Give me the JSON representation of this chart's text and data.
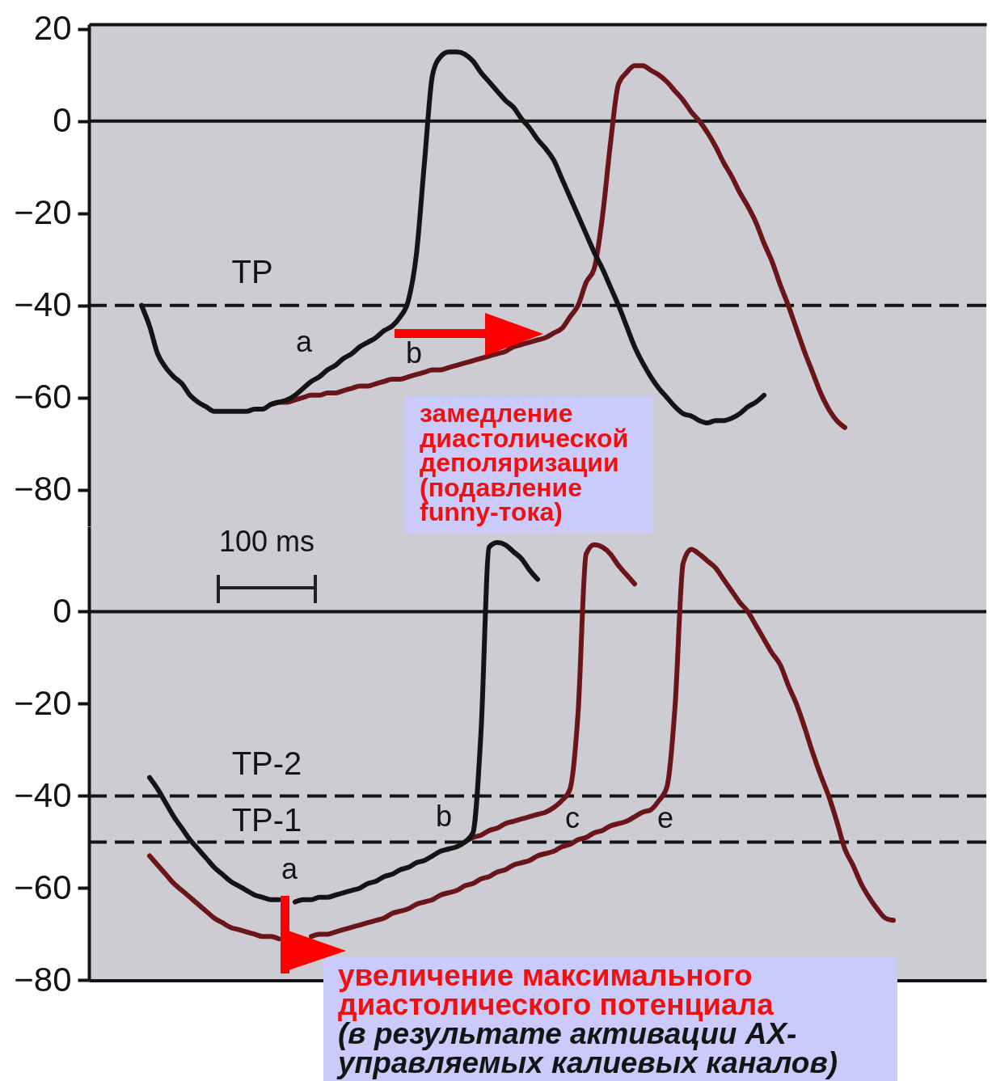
{
  "chart_data": [
    {
      "type": "line",
      "categories": [
        null,
        null,
        null,
        null,
        null,
        null,
        null,
        null,
        null,
        null,
        null,
        null,
        null,
        null,
        null,
        null,
        null,
        null,
        null,
        null,
        null,
        null,
        null,
        null,
        null,
        null,
        null,
        null,
        null,
        null,
        null,
        null,
        null,
        null,
        null,
        null,
        null,
        null,
        null,
        null,
        null,
        null,
        null,
        null,
        null,
        null,
        null,
        null,
        null,
        null,
        null,
        null,
        null,
        null,
        null,
        null,
        null,
        null,
        null,
        null,
        null,
        null,
        null,
        null,
        null,
        null,
        null,
        null,
        null,
        null,
        null,
        null,
        null,
        null,
        null,
        null,
        null,
        null,
        null,
        null,
        null,
        null,
        null,
        null,
        null,
        null,
        null,
        null,
        null,
        null,
        null,
        null,
        null,
        null,
        null,
        null,
        null,
        null,
        null,
        null,
        null,
        null,
        null,
        null,
        null,
        null,
        null,
        null,
        null,
        null,
        null
      ],
      "series": [
        {
          "color": "#6a151a",
          "values": [
            null,
            null,
            null,
            null,
            null,
            null,
            null,
            null,
            null,
            null,
            null,
            null,
            null,
            null,
            null,
            null,
            null,
            null,
            null,
            null,
            null,
            null,
            -61.5,
            -61,
            -61,
            -60.5,
            -60,
            -59.5,
            -59.5,
            -59,
            -59,
            -58.5,
            -58,
            -57.5,
            -57.5,
            -57,
            -56.5,
            -56,
            -56,
            -55.5,
            -55,
            -54.5,
            -54,
            -54,
            -53.5,
            -53,
            -52.5,
            -52,
            -51.5,
            -51,
            -50.5,
            -50,
            -49,
            -48.5,
            -48,
            -47.5,
            -47,
            -46,
            -45,
            -42.5,
            -40,
            -35,
            -32,
            -21,
            -5,
            8,
            10.5,
            12,
            12,
            11,
            10,
            8.5,
            6.5,
            4.5,
            2,
            0,
            -2.5,
            -5.5,
            -9,
            -12,
            -15.5,
            -18.5,
            -22,
            -26.5,
            -30.5,
            -35.5,
            -40,
            -45,
            -50,
            -54.5,
            -59,
            -62.5,
            -65,
            -66.5,
            null,
            null,
            null,
            null,
            null,
            null,
            null,
            null,
            null,
            null,
            null,
            null,
            null,
            null,
            null,
            null,
            null
          ]
        },
        {
          "color": "#141414",
          "values": [
            null,
            null,
            null,
            null,
            null,
            null,
            -40,
            -44.5,
            -50.5,
            -53.5,
            -55.5,
            -57,
            -59.5,
            -61,
            -62,
            -63,
            -63,
            -63,
            -63,
            -63,
            -62.5,
            -62.5,
            -61.5,
            -61,
            -60.5,
            -59.5,
            -58,
            -56.5,
            -55.5,
            -54,
            -53,
            -51.5,
            -50.5,
            -49,
            -48,
            -47,
            -45.5,
            -44.5,
            -42.5,
            -39,
            -29,
            -9,
            10,
            14,
            15,
            15,
            14.5,
            13,
            10.5,
            8.5,
            6.5,
            4.5,
            3,
            0.5,
            -1.5,
            -4,
            -6,
            -8.5,
            -12.5,
            -16.5,
            -20.5,
            -24.5,
            -28.5,
            -32,
            -36,
            -40,
            -44.5,
            -49,
            -52.5,
            -55.5,
            -58,
            -60,
            -62,
            -63.5,
            -64,
            -65,
            -65.5,
            -65,
            -65,
            -64.5,
            -63.5,
            -62,
            -61,
            -59.5,
            null,
            null,
            null,
            null,
            null,
            null,
            null,
            null,
            null,
            null,
            null,
            null,
            null,
            null,
            null,
            null,
            null,
            null,
            null,
            null,
            null,
            null,
            null,
            null,
            null,
            null,
            null
          ]
        }
      ],
      "ylim": [
        -88,
        21
      ],
      "yticks": [
        20,
        0,
        -20,
        -40,
        -60,
        -80
      ],
      "tick_labels": "y",
      "ref_lines": [
        {
          "axis": "y",
          "value": 0,
          "line_style": "solid",
          "color": "#141414"
        },
        {
          "axis": "y",
          "value": -40,
          "label": "TP",
          "line_style": "dashed",
          "color": "#141414"
        }
      ],
      "annotations": [
        "a",
        "b",
        "замедление диастолической деполяризации (подавление funny-тока)"
      ]
    },
    {
      "type": "line",
      "categories": [
        null,
        null,
        null,
        null,
        null,
        null,
        null,
        null,
        null,
        null,
        null,
        null,
        null,
        null,
        null,
        null,
        null,
        null,
        null,
        null,
        null,
        null,
        null,
        null,
        null,
        null,
        null,
        null,
        null,
        null,
        null,
        null,
        null,
        null,
        null,
        null,
        null,
        null,
        null,
        null,
        null,
        null,
        null,
        null,
        null,
        null,
        null,
        null,
        null,
        null,
        null,
        null,
        null,
        null,
        null,
        null,
        null,
        null,
        null,
        null,
        null,
        null,
        null,
        null,
        null,
        null,
        null,
        null,
        null,
        null,
        null,
        null,
        null,
        null,
        null,
        null,
        null,
        null,
        null,
        null,
        null,
        null,
        null,
        null,
        null,
        null,
        null,
        null,
        null,
        null,
        null,
        null,
        null,
        null,
        null,
        null,
        null,
        null,
        null,
        null,
        null,
        null,
        null,
        null,
        null,
        null,
        null,
        null,
        null,
        null,
        null
      ],
      "series": [
        {
          "color": "#6a151a",
          "values": [
            null,
            null,
            null,
            null,
            null,
            null,
            null,
            null,
            null,
            null,
            null,
            null,
            null,
            null,
            null,
            null,
            null,
            null,
            null,
            null,
            null,
            null,
            null,
            null,
            null,
            null,
            null,
            null,
            null,
            null,
            null,
            null,
            null,
            null,
            null,
            null,
            null,
            null,
            null,
            null,
            null,
            null,
            null,
            null,
            null,
            null,
            -50,
            -49,
            -48.5,
            -47.5,
            -47,
            -46,
            -45.5,
            -45,
            -44.5,
            -44,
            -43.5,
            -42.5,
            -41,
            -38.5,
            -22,
            12.5,
            14.5,
            14,
            12.5,
            10,
            8,
            6,
            null,
            null,
            null,
            null,
            null,
            null,
            null,
            null,
            null,
            null,
            null,
            null,
            null,
            null,
            null,
            null,
            null,
            null,
            null,
            null,
            null,
            null,
            null,
            null,
            null,
            null,
            null,
            null,
            null,
            null,
            null,
            null,
            null,
            null,
            null,
            null,
            null,
            null,
            null,
            null,
            null,
            null,
            null
          ]
        },
        {
          "color": "#6a151a",
          "values": [
            null,
            null,
            null,
            null,
            null,
            null,
            null,
            -53,
            -55,
            -57,
            -59,
            -60.5,
            -62,
            -63.5,
            -65,
            -66.5,
            -67.5,
            -68.5,
            -69,
            -69.5,
            -70,
            -70.5,
            -70.5,
            -71,
            null,
            null,
            null,
            -70.5,
            -70,
            -70,
            -69.5,
            -69,
            -68.5,
            -68,
            -67.5,
            -67,
            -66.5,
            -65.5,
            -65,
            -64.5,
            -63.5,
            -63,
            -62.5,
            -61.5,
            -61,
            -60.5,
            -59.5,
            -59,
            -58,
            -57.5,
            -56.5,
            -56,
            -55,
            -54.5,
            -54,
            -53,
            -52.5,
            -52,
            -51,
            -50.5,
            -49.5,
            -49,
            -48,
            -47.5,
            -46.5,
            -46,
            -45.5,
            -44.5,
            -43.5,
            -43,
            -41,
            -38,
            -20.5,
            10.5,
            13.5,
            12.5,
            11,
            9.5,
            7,
            4.5,
            2,
            0,
            -3,
            -6,
            -9,
            -11.5,
            -16,
            -20,
            -25,
            -30.5,
            -35.5,
            -40,
            -45.5,
            -51.5,
            -55,
            -59,
            -62,
            -64.5,
            -66.5,
            -67,
            null,
            null,
            null,
            null,
            null,
            null,
            null,
            null,
            null,
            null,
            null
          ]
        },
        {
          "color": "#141414",
          "values": [
            null,
            null,
            null,
            null,
            null,
            null,
            null,
            -36,
            -38.5,
            -41.5,
            -44.5,
            -47,
            -49.5,
            -51.5,
            -53.5,
            -55.5,
            -57,
            -58.5,
            -59.5,
            -60.5,
            -61.5,
            -62,
            -62.5,
            -62.5,
            null,
            -63,
            -62.5,
            -62.5,
            -62,
            -62,
            -61.5,
            -61,
            -60.5,
            -60,
            -59,
            -58.5,
            -57.5,
            -57,
            -56,
            -55.5,
            -54.5,
            -54,
            -53,
            -52,
            -51.5,
            -51,
            -50,
            -48,
            -26,
            14,
            15,
            14.5,
            13,
            11.5,
            9,
            7,
            null,
            null,
            null,
            null,
            null,
            null,
            null,
            null,
            null,
            null,
            null,
            null,
            null,
            null,
            null,
            null,
            null,
            null,
            null,
            null,
            null,
            null,
            null,
            null,
            null,
            null,
            null,
            null,
            null,
            null,
            null,
            null,
            null,
            null,
            null,
            null,
            null,
            null,
            null,
            null,
            null,
            null,
            null,
            null,
            null,
            null,
            null,
            null,
            null,
            null,
            null,
            null,
            null,
            null,
            null
          ]
        }
      ],
      "ylim": [
        -80,
        18.5
      ],
      "yticks": [
        0,
        -20,
        -40,
        -60,
        -80
      ],
      "tick_labels": "y",
      "ref_lines": [
        {
          "axis": "y",
          "value": 0,
          "line_style": "solid",
          "color": "#141414"
        },
        {
          "axis": "y",
          "value": -40,
          "label": "TP-2",
          "line_style": "dashed",
          "color": "#141414"
        },
        {
          "axis": "y",
          "value": -50,
          "label": "TP-1",
          "line_style": "dashed",
          "color": "#141414"
        }
      ],
      "annotations": [
        "100 ms",
        "a",
        "b",
        "c",
        "e",
        "увеличение максимального диастолического потенциала",
        "(в результате активации АХ-управляемых калиевых каналов)"
      ]
    }
  ]
}
